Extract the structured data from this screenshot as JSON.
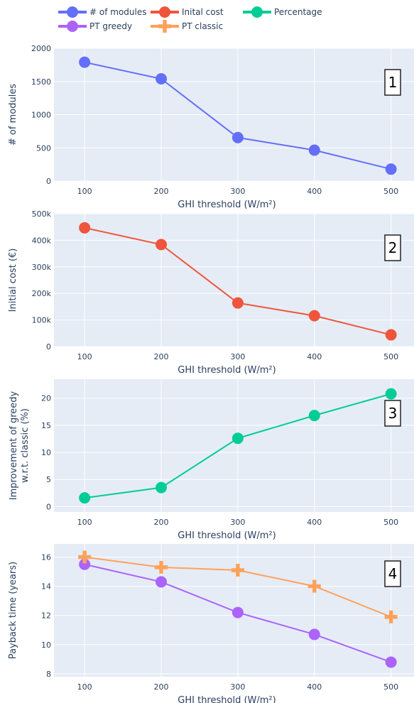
{
  "legend": [
    {
      "label": "# of modules",
      "color": "#636efa",
      "marker": "circle"
    },
    {
      "label": "Inital cost",
      "color": "#ef553b",
      "marker": "circle"
    },
    {
      "label": "Percentage",
      "color": "#00cc96",
      "marker": "circle"
    },
    {
      "label": "PT greedy",
      "color": "#ab63fa",
      "marker": "circle"
    },
    {
      "label": "PT classic",
      "color": "#ffa15a",
      "marker": "cross"
    }
  ],
  "chart_data": [
    {
      "type": "line",
      "badge": "1",
      "x": [
        100,
        200,
        300,
        400,
        500
      ],
      "xlabel": "GHI threshold (W/m²)",
      "ylabel": "# of modules",
      "ylim": [
        0,
        2000
      ],
      "yticks": [
        "0",
        "500",
        "1000",
        "1500",
        "2000"
      ],
      "ytick_values": [
        0,
        500,
        1000,
        1500,
        2000
      ],
      "series": [
        {
          "name": "# of modules",
          "color": "#636efa",
          "marker": "circle",
          "values": [
            1790,
            1540,
            655,
            465,
            180
          ]
        }
      ]
    },
    {
      "type": "line",
      "badge": "2",
      "x": [
        100,
        200,
        300,
        400,
        500
      ],
      "xlabel": "GHI threshold (W/m²)",
      "ylabel": "Initial cost (€)",
      "ylim": [
        0,
        500000
      ],
      "yticks": [
        "0",
        "100k",
        "200k",
        "300k",
        "400k",
        "500k"
      ],
      "ytick_values": [
        0,
        100000,
        200000,
        300000,
        400000,
        500000
      ],
      "series": [
        {
          "name": "Inital cost",
          "color": "#ef553b",
          "marker": "circle",
          "values": [
            447000,
            384000,
            164000,
            116000,
            44000
          ]
        }
      ]
    },
    {
      "type": "line",
      "badge": "3",
      "x": [
        100,
        200,
        300,
        400,
        500
      ],
      "xlabel": "GHI threshold (W/m²)",
      "ylabel": "Improvement of greedy w.r.t. classic (%)",
      "ylabel_lines": [
        "Improvement of greedy",
        "w.r.t. classic (%)"
      ],
      "ylim": [
        -1,
        23.5
      ],
      "yticks": [
        "0",
        "5",
        "10",
        "15",
        "20"
      ],
      "ytick_values": [
        0,
        5,
        10,
        15,
        20
      ],
      "series": [
        {
          "name": "Percentage",
          "color": "#00cc96",
          "marker": "circle",
          "values": [
            1.6,
            3.5,
            12.6,
            16.8,
            20.8
          ]
        }
      ]
    },
    {
      "type": "line",
      "badge": "4",
      "x": [
        100,
        200,
        300,
        400,
        500
      ],
      "xlabel": "GHI threshold (W/m²)",
      "ylabel": "Payback time (years)",
      "ylim": [
        7.8,
        16.9
      ],
      "yticks": [
        "8",
        "10",
        "12",
        "14",
        "16"
      ],
      "ytick_values": [
        8,
        10,
        12,
        14,
        16
      ],
      "series": [
        {
          "name": "PT greedy",
          "color": "#ab63fa",
          "marker": "circle",
          "values": [
            15.5,
            14.3,
            12.2,
            10.7,
            8.8
          ]
        },
        {
          "name": "PT classic",
          "color": "#ffa15a",
          "marker": "cross",
          "values": [
            16.0,
            15.3,
            15.1,
            14.0,
            11.9
          ]
        }
      ]
    }
  ]
}
